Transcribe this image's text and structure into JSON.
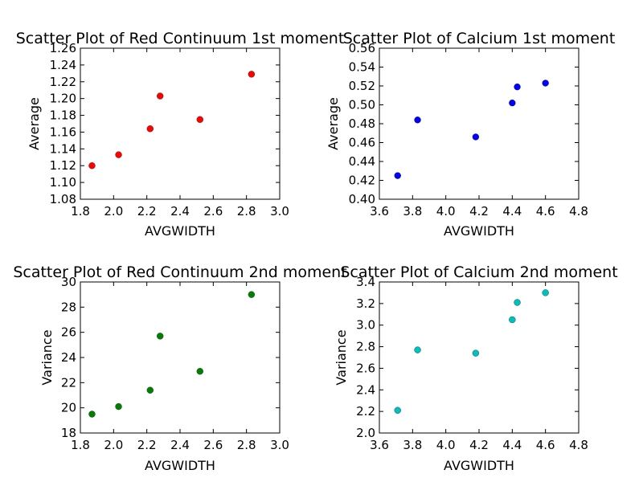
{
  "chart_data": [
    {
      "type": "scatter",
      "title": "Scatter Plot of Red Continuum 1st moment",
      "xlabel": "AVGWIDTH",
      "ylabel": "Average",
      "xlim": [
        1.8,
        3.0
      ],
      "ylim": [
        1.08,
        1.26
      ],
      "xticks": [
        "1.8",
        "2.0",
        "2.2",
        "2.4",
        "2.6",
        "2.8",
        "3.0"
      ],
      "yticks": [
        "1.08",
        "1.10",
        "1.12",
        "1.14",
        "1.16",
        "1.18",
        "1.20",
        "1.22",
        "1.24",
        "1.26"
      ],
      "color": "#ff0000",
      "grid": false,
      "series": [
        {
          "x": [
            1.87,
            2.03,
            2.22,
            2.28,
            2.52,
            2.83
          ],
          "y": [
            1.12,
            1.133,
            1.164,
            1.203,
            1.175,
            1.229
          ]
        }
      ]
    },
    {
      "type": "scatter",
      "title": "Scatter Plot of Calcium 1st moment",
      "xlabel": "AVGWIDTH",
      "ylabel": "Average",
      "xlim": [
        3.6,
        4.8
      ],
      "ylim": [
        0.4,
        0.56
      ],
      "xticks": [
        "3.6",
        "3.8",
        "4.0",
        "4.2",
        "4.4",
        "4.6",
        "4.8"
      ],
      "yticks": [
        "0.40",
        "0.42",
        "0.44",
        "0.46",
        "0.48",
        "0.50",
        "0.52",
        "0.54",
        "0.56"
      ],
      "color": "#0000ff",
      "grid": false,
      "series": [
        {
          "x": [
            3.71,
            3.83,
            4.18,
            4.4,
            4.43,
            4.6
          ],
          "y": [
            0.425,
            0.484,
            0.466,
            0.502,
            0.519,
            0.523
          ]
        }
      ]
    },
    {
      "type": "scatter",
      "title": "Scatter Plot of Red Continuum 2nd moment",
      "xlabel": "AVGWIDTH",
      "ylabel": "Variance",
      "xlim": [
        1.8,
        3.0
      ],
      "ylim": [
        18,
        30
      ],
      "xticks": [
        "1.8",
        "2.0",
        "2.2",
        "2.4",
        "2.6",
        "2.8",
        "3.0"
      ],
      "yticks": [
        "18",
        "20",
        "22",
        "24",
        "26",
        "28",
        "30"
      ],
      "color": "#008000",
      "grid": false,
      "series": [
        {
          "x": [
            1.87,
            2.03,
            2.22,
            2.28,
            2.52,
            2.83
          ],
          "y": [
            19.5,
            20.1,
            21.4,
            25.7,
            22.9,
            29.0
          ]
        }
      ]
    },
    {
      "type": "scatter",
      "title": "Scatter Plot of Calcium 2nd moment",
      "xlabel": "AVGWIDTH",
      "ylabel": "Variance",
      "xlim": [
        3.6,
        4.8
      ],
      "ylim": [
        2.0,
        3.4
      ],
      "xticks": [
        "3.6",
        "3.8",
        "4.0",
        "4.2",
        "4.4",
        "4.6",
        "4.8"
      ],
      "yticks": [
        "2.0",
        "2.2",
        "2.4",
        "2.6",
        "2.8",
        "3.0",
        "3.2",
        "3.4"
      ],
      "color": "#00bfbf",
      "grid": false,
      "series": [
        {
          "x": [
            3.71,
            3.83,
            4.18,
            4.4,
            4.43,
            4.6
          ],
          "y": [
            2.21,
            2.77,
            2.74,
            3.05,
            3.21,
            3.3
          ]
        }
      ]
    }
  ]
}
